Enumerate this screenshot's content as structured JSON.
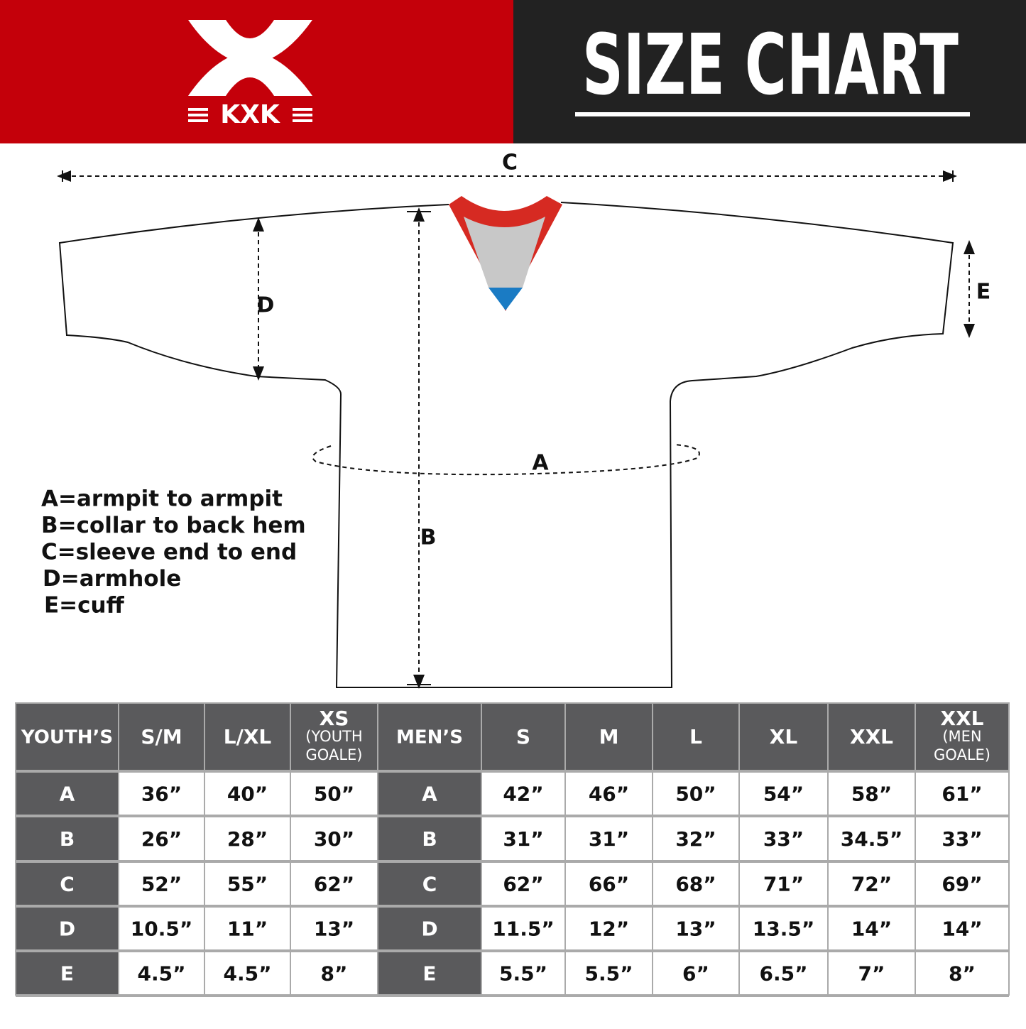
{
  "header": {
    "logo_text": "KXK",
    "title": "SIZE CHART"
  },
  "diagram": {
    "labels": [
      "C",
      "D",
      "A",
      "B",
      "E"
    ]
  },
  "legend": [
    "A=armpit to armpit",
    "B=collar to back hem",
    "C=sleeve end to end",
    "D=armhole",
    "E=cuff"
  ],
  "table": {
    "header": [
      "YOUTH’S",
      "S/M",
      "L/XL",
      {
        "main": "XS",
        "note": [
          "(YOUTH",
          "GOALE)"
        ]
      },
      "MEN’S",
      "S",
      "M",
      "L",
      "XL",
      "XXL",
      {
        "main": "XXL",
        "note": [
          "(MEN",
          "GOALE)"
        ]
      }
    ],
    "rows": [
      [
        "A",
        "36”",
        "40”",
        "50”",
        "A",
        "42”",
        "46”",
        "50”",
        "54”",
        "58”",
        "61”"
      ],
      [
        "B",
        "26”",
        "28”",
        "30”",
        "B",
        "31”",
        "31”",
        "32”",
        "33”",
        "34.5”",
        "33”"
      ],
      [
        "C",
        "52”",
        "55”",
        "62”",
        "C",
        "62”",
        "66”",
        "68”",
        "71”",
        "72”",
        "69”"
      ],
      [
        "D",
        "10.5”",
        "11”",
        "13”",
        "D",
        "11.5”",
        "12”",
        "13”",
        "13.5”",
        "14”",
        "14”"
      ],
      [
        "E",
        "4.5”",
        "4.5”",
        "8”",
        "E",
        "5.5”",
        "5.5”",
        "6”",
        "6.5”",
        "7”",
        "8”"
      ]
    ]
  }
}
